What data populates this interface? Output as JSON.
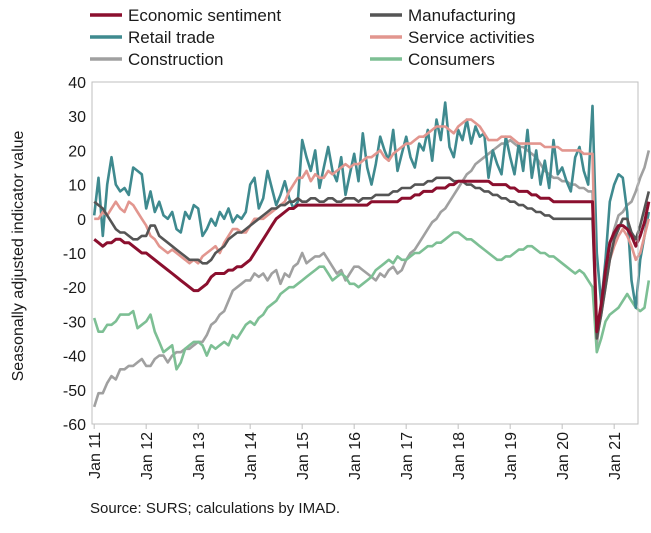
{
  "chart_data": {
    "type": "line",
    "ylabel": "Seasonally adjusted indicator value",
    "xlabel": "",
    "ylim": [
      -60,
      40
    ],
    "yticks": [
      40,
      30,
      20,
      10,
      0,
      -10,
      -20,
      -30,
      -40,
      -50,
      -60
    ],
    "x_range": [
      "2011-01",
      "2021-06"
    ],
    "x_tick_labels": [
      "Jan 11",
      "Jan 12",
      "Jan 13",
      "Jan 14",
      "Jan 15",
      "Jan 16",
      "Jan 17",
      "Jan 18",
      "Jan 19",
      "Jan 20",
      "Jan 21"
    ],
    "grid": false,
    "legend_position": "top",
    "source": "Source: SURS; calculations by IMAD.",
    "series": [
      {
        "name": "Construction",
        "color": "#a0a0a0",
        "start": "2011-01",
        "values": [
          -55,
          -51,
          -51,
          -48,
          -46,
          -47,
          -44,
          -44,
          -43,
          -43,
          -42,
          -41,
          -43,
          -43,
          -41,
          -40,
          -40,
          -42,
          -40,
          -39,
          -39,
          -38,
          -38,
          -37,
          -36,
          -36,
          -34,
          -31,
          -30,
          -28,
          -27,
          -24,
          -21,
          -20,
          -19,
          -18,
          -18,
          -16,
          -17,
          -16,
          -18,
          -16,
          -15,
          -19,
          -16,
          -17,
          -14,
          -13,
          -10,
          -13,
          -12,
          -11,
          -11,
          -10,
          -12,
          -14,
          -16,
          -15,
          -18,
          -16,
          -14,
          -14,
          -15,
          -16,
          -17,
          -18,
          -16,
          -17,
          -15,
          -14,
          -16,
          -15,
          -12,
          -10,
          -9,
          -7,
          -5,
          -3,
          -1,
          0,
          2,
          3,
          5,
          7,
          9,
          11,
          13,
          14,
          16,
          17,
          18,
          19,
          20,
          21,
          22,
          22,
          23,
          22,
          21,
          21,
          20,
          19,
          18,
          16,
          14,
          13,
          12,
          12,
          11,
          11,
          10,
          10,
          9,
          9,
          8,
          8,
          -37,
          -25,
          -15,
          -8,
          -3,
          1,
          2,
          4,
          5,
          8,
          12,
          15,
          20
        ]
      },
      {
        "name": "Consumers",
        "color": "#7dbf94",
        "start": "2011-01",
        "values": [
          -29,
          -33,
          -33,
          -31,
          -31,
          -30,
          -28,
          -28,
          -28,
          -27,
          -32,
          -31,
          -30,
          -28,
          -33,
          -36,
          -39,
          -38,
          -37,
          -44,
          -42,
          -38,
          -37,
          -36,
          -36,
          -37,
          -40,
          -37,
          -38,
          -37,
          -36,
          -37,
          -34,
          -35,
          -33,
          -31,
          -30,
          -31,
          -29,
          -28,
          -26,
          -25,
          -24,
          -22,
          -21,
          -20,
          -20,
          -19,
          -18,
          -17,
          -16,
          -15,
          -14,
          -14,
          -16,
          -18,
          -17,
          -16,
          -17,
          -19,
          -19,
          -20,
          -19,
          -18,
          -17,
          -15,
          -14,
          -13,
          -12,
          -13,
          -11,
          -12,
          -12,
          -11,
          -10,
          -10,
          -9,
          -8,
          -8,
          -7,
          -7,
          -6,
          -5,
          -4,
          -4,
          -5,
          -6,
          -6,
          -7,
          -8,
          -9,
          -10,
          -11,
          -12,
          -12,
          -11,
          -11,
          -10,
          -9,
          -9,
          -8,
          -8,
          -9,
          -10,
          -10,
          -11,
          -11,
          -12,
          -13,
          -14,
          -15,
          -16,
          -15,
          -16,
          -18,
          -20,
          -39,
          -35,
          -30,
          -28,
          -27,
          -26,
          -24,
          -22,
          -24,
          -26,
          -27,
          -26,
          -18
        ]
      },
      {
        "name": "Retail trade",
        "color": "#3f8a8f",
        "start": "2011-01",
        "values": [
          1,
          12,
          -5,
          10,
          18,
          10,
          8,
          9,
          7,
          15,
          14,
          13,
          3,
          8,
          2,
          5,
          1,
          0,
          2,
          -3,
          -4,
          2,
          0,
          4,
          3,
          -5,
          -3,
          0,
          -2,
          2,
          0,
          3,
          -1,
          1,
          0,
          2,
          10,
          12,
          3,
          6,
          14,
          9,
          4,
          7,
          11,
          6,
          3,
          5,
          23,
          18,
          14,
          20,
          9,
          15,
          21,
          14,
          11,
          18,
          7,
          13,
          19,
          11,
          25,
          15,
          10,
          16,
          24,
          20,
          17,
          26,
          14,
          19,
          24,
          18,
          15,
          22,
          20,
          26,
          17,
          29,
          23,
          34,
          21,
          18,
          26,
          23,
          29,
          22,
          27,
          24,
          25,
          12,
          20,
          16,
          13,
          24,
          18,
          13,
          22,
          14,
          26,
          12,
          20,
          10,
          17,
          9,
          23,
          13,
          15,
          11,
          8,
          18,
          21,
          14,
          10,
          33,
          -10,
          -25,
          -12,
          5,
          10,
          13,
          12,
          2,
          -18,
          -26,
          -12,
          -5,
          2
        ]
      },
      {
        "name": "Service activities",
        "color": "#e2968f",
        "start": "2011-01",
        "values": [
          0,
          0,
          2,
          1,
          3,
          5,
          3,
          2,
          5,
          4,
          2,
          0,
          -2,
          -5,
          -6,
          -8,
          -9,
          -10,
          -9,
          -10,
          -11,
          -12,
          -13,
          -12,
          -13,
          -11,
          -10,
          -9,
          -8,
          -10,
          -7,
          -5,
          -3,
          -3,
          -4,
          -4,
          -2,
          0,
          0,
          0,
          1,
          2,
          3,
          4,
          5,
          8,
          10,
          12,
          12,
          14,
          11,
          13,
          12,
          12,
          14,
          13,
          14,
          15,
          16,
          15,
          16,
          16,
          17,
          18,
          18,
          19,
          20,
          18,
          17,
          19,
          20,
          21,
          22,
          22,
          23,
          24,
          24,
          25,
          26,
          27,
          27,
          27,
          26,
          25,
          27,
          28,
          29,
          29,
          28,
          27,
          25,
          23,
          23,
          23,
          24,
          24,
          24,
          23,
          22,
          22,
          22,
          22,
          22,
          22,
          21,
          21,
          21,
          21,
          20,
          20,
          20,
          20,
          20,
          19,
          19,
          19,
          -35,
          -28,
          -20,
          -12,
          -8,
          -5,
          -3,
          -5,
          -8,
          -12,
          -10,
          -5,
          0
        ]
      },
      {
        "name": "Manufacturing",
        "color": "#555555",
        "start": "2011-01",
        "values": [
          5,
          4,
          3,
          1,
          -1,
          -3,
          -4,
          -4,
          -5,
          -6,
          -6,
          -5,
          -5,
          -2,
          -2,
          -5,
          -6,
          -7,
          -8,
          -9,
          -10,
          -11,
          -12,
          -12,
          -12,
          -13,
          -13,
          -12,
          -10,
          -9,
          -8,
          -6,
          -5,
          -4,
          -4,
          -3,
          -2,
          -1,
          0,
          1,
          2,
          3,
          3,
          4,
          4,
          5,
          5,
          6,
          5,
          5,
          6,
          6,
          5,
          5,
          6,
          6,
          5,
          5,
          6,
          6,
          6,
          5,
          6,
          6,
          6,
          7,
          7,
          7,
          7,
          8,
          8,
          9,
          9,
          9,
          10,
          10,
          10,
          11,
          11,
          12,
          12,
          12,
          12,
          11,
          11,
          11,
          10,
          10,
          9,
          9,
          8,
          8,
          7,
          7,
          6,
          6,
          5,
          5,
          4,
          4,
          3,
          3,
          2,
          2,
          1,
          1,
          0,
          0,
          0,
          0,
          0,
          0,
          0,
          0,
          0,
          0,
          -35,
          -28,
          -20,
          -12,
          -6,
          -3,
          0,
          0,
          -4,
          -6,
          -2,
          3,
          8
        ]
      },
      {
        "name": "Economic sentiment",
        "color": "#8b0f2e",
        "start": "2011-01",
        "values": [
          -6,
          -7,
          -8,
          -7,
          -7,
          -6,
          -6,
          -7,
          -7,
          -8,
          -9,
          -10,
          -10,
          -11,
          -12,
          -13,
          -14,
          -15,
          -16,
          -17,
          -18,
          -19,
          -20,
          -21,
          -21,
          -20,
          -19,
          -17,
          -16,
          -16,
          -16,
          -15,
          -15,
          -14,
          -14,
          -13,
          -12,
          -10,
          -8,
          -6,
          -4,
          -2,
          0,
          1,
          2,
          3,
          3,
          4,
          4,
          4,
          4,
          4,
          4,
          4,
          4,
          4,
          4,
          4,
          4,
          4,
          4,
          4,
          4,
          4,
          5,
          5,
          5,
          5,
          5,
          5,
          5,
          6,
          6,
          6,
          7,
          7,
          8,
          8,
          8,
          9,
          9,
          9,
          10,
          10,
          11,
          11,
          11,
          11,
          11,
          11,
          11,
          11,
          10,
          10,
          10,
          10,
          9,
          9,
          8,
          8,
          8,
          7,
          7,
          6,
          6,
          6,
          5,
          5,
          5,
          5,
          5,
          5,
          5,
          5,
          5,
          5,
          -33,
          -25,
          -15,
          -7,
          -4,
          -2,
          -2,
          -3,
          -5,
          -8,
          -5,
          -1,
          5
        ]
      }
    ]
  },
  "legend": {
    "items": [
      {
        "label": "Economic sentiment",
        "color": "#8b0f2e"
      },
      {
        "label": "Manufacturing",
        "color": "#555555"
      },
      {
        "label": "Retail trade",
        "color": "#3f8a8f"
      },
      {
        "label": "Service activities",
        "color": "#e2968f"
      },
      {
        "label": "Construction",
        "color": "#a0a0a0"
      },
      {
        "label": "Consumers",
        "color": "#7dbf94"
      }
    ]
  }
}
